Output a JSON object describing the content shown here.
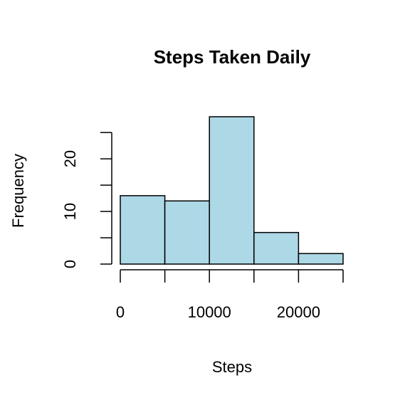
{
  "chart_data": {
    "type": "histogram",
    "title": "Steps Taken Daily",
    "xlabel": "Steps",
    "ylabel": "Frequency",
    "bins": [
      0,
      5000,
      10000,
      15000,
      20000,
      25000
    ],
    "values": [
      13,
      12,
      28,
      6,
      2
    ],
    "color": "#add8e6",
    "xlim": [
      0,
      25000
    ],
    "xticks": [
      0,
      10000,
      20000
    ],
    "xminor_ticks": [
      5000,
      15000,
      25000
    ],
    "ylim": [
      0,
      28
    ],
    "yticks": [
      0,
      10,
      20
    ],
    "yminor_ticks": [
      5,
      15,
      25
    ]
  }
}
